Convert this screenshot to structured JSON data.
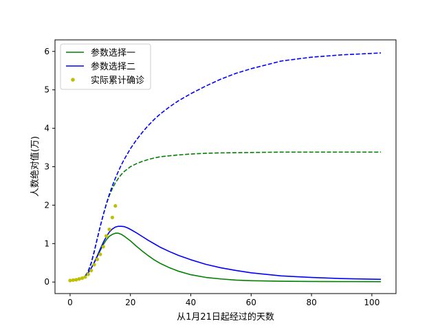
{
  "chart_data": {
    "type": "line",
    "title": "",
    "xlabel": "从1月21日起经过的天数",
    "ylabel": "人数绝对值(万)",
    "xlim": [
      -5,
      108
    ],
    "ylim": [
      -0.3,
      6.3
    ],
    "xticks": [
      "0",
      "20",
      "40",
      "60",
      "80",
      "100"
    ],
    "yticks": [
      "0",
      "1",
      "2",
      "3",
      "4",
      "5",
      "6"
    ],
    "grid": false,
    "legend_position": "top-left",
    "legend": [
      "参数选择一",
      "参数选择二",
      "实际累计确诊"
    ],
    "series": [
      {
        "name": "参数选择一",
        "color": "#008000",
        "style": "solid",
        "x": [
          5,
          6,
          7,
          8,
          9,
          10,
          11,
          12,
          13,
          14,
          15,
          16,
          17,
          18,
          20,
          22,
          24,
          26,
          28,
          30,
          33,
          36,
          40,
          45,
          50,
          55,
          60,
          70,
          80,
          90,
          103
        ],
        "y": [
          0.15,
          0.24,
          0.36,
          0.5,
          0.66,
          0.82,
          0.97,
          1.1,
          1.19,
          1.24,
          1.27,
          1.27,
          1.24,
          1.19,
          1.07,
          0.93,
          0.8,
          0.68,
          0.57,
          0.48,
          0.37,
          0.28,
          0.19,
          0.12,
          0.08,
          0.05,
          0.035,
          0.02,
          0.015,
          0.012,
          0.01
        ]
      },
      {
        "name": "参数选择二",
        "color": "#0000ff",
        "style": "solid",
        "x": [
          5,
          6,
          7,
          8,
          9,
          10,
          11,
          12,
          13,
          14,
          15,
          16,
          17,
          18,
          19,
          20,
          22,
          24,
          26,
          28,
          30,
          33,
          36,
          40,
          45,
          50,
          55,
          60,
          70,
          80,
          90,
          103
        ],
        "y": [
          0.15,
          0.24,
          0.36,
          0.51,
          0.68,
          0.86,
          1.03,
          1.18,
          1.3,
          1.38,
          1.43,
          1.45,
          1.45,
          1.44,
          1.41,
          1.37,
          1.28,
          1.18,
          1.08,
          0.99,
          0.9,
          0.79,
          0.69,
          0.58,
          0.46,
          0.37,
          0.3,
          0.24,
          0.16,
          0.12,
          0.09,
          0.07
        ]
      },
      {
        "name": "参数选择一 累计",
        "color": "#008000",
        "style": "dashed",
        "x": [
          5,
          6,
          7,
          8,
          9,
          10,
          11,
          12,
          13,
          14,
          15,
          16,
          17,
          18,
          20,
          22,
          24,
          26,
          28,
          30,
          35,
          40,
          45,
          50,
          60,
          70,
          80,
          90,
          103
        ],
        "y": [
          0.15,
          0.28,
          0.48,
          0.78,
          1.12,
          1.45,
          1.75,
          2.02,
          2.25,
          2.43,
          2.58,
          2.7,
          2.8,
          2.88,
          3.0,
          3.08,
          3.14,
          3.19,
          3.23,
          3.26,
          3.3,
          3.33,
          3.35,
          3.36,
          3.37,
          3.38,
          3.38,
          3.38,
          3.38
        ]
      },
      {
        "name": "参数选择二 累计",
        "color": "#0000ff",
        "style": "dashed",
        "x": [
          5,
          6,
          7,
          8,
          9,
          10,
          11,
          12,
          13,
          14,
          15,
          16,
          17,
          18,
          20,
          22,
          24,
          26,
          28,
          30,
          33,
          36,
          40,
          45,
          50,
          55,
          60,
          70,
          80,
          90,
          103
        ],
        "y": [
          0.15,
          0.28,
          0.5,
          0.8,
          1.13,
          1.45,
          1.75,
          2.03,
          2.28,
          2.5,
          2.7,
          2.88,
          3.05,
          3.2,
          3.47,
          3.7,
          3.9,
          4.08,
          4.24,
          4.38,
          4.56,
          4.72,
          4.9,
          5.1,
          5.28,
          5.43,
          5.55,
          5.75,
          5.85,
          5.91,
          5.96
        ]
      }
    ],
    "scatter": {
      "name": "实际累计确诊",
      "color": "#bfbf00",
      "x": [
        0,
        1,
        2,
        3,
        4,
        5,
        6,
        7,
        8,
        9,
        10,
        11,
        12,
        13,
        14,
        15
      ],
      "y": [
        0.04,
        0.05,
        0.06,
        0.08,
        0.1,
        0.13,
        0.2,
        0.3,
        0.45,
        0.59,
        0.72,
        0.92,
        1.2,
        1.37,
        1.68,
        1.98
      ]
    }
  }
}
